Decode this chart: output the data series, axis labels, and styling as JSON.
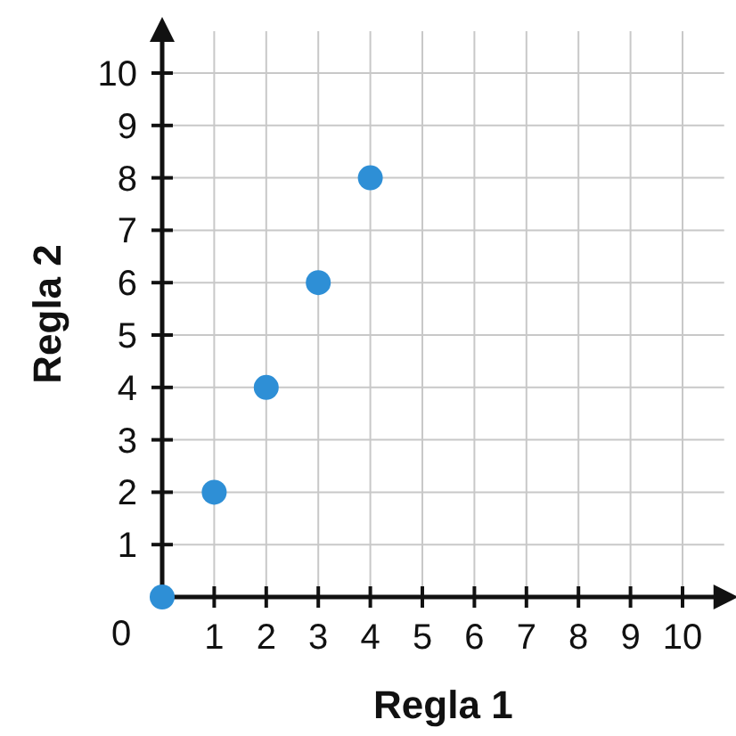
{
  "chart_data": {
    "type": "scatter",
    "xlabel": "Regla 1",
    "ylabel": "Regla 2",
    "x": [
      0,
      1,
      2,
      3,
      4
    ],
    "series": [
      {
        "color": "#2e8fd6",
        "values": [
          0,
          2,
          4,
          6,
          8
        ]
      }
    ],
    "xlim": [
      0,
      10.8
    ],
    "ylim": [
      0,
      10.8
    ],
    "xticks": [
      1,
      2,
      3,
      4,
      5,
      6,
      7,
      8,
      9,
      10
    ],
    "yticks": [
      1,
      2,
      3,
      4,
      5,
      6,
      7,
      8,
      9,
      10
    ],
    "grid": true,
    "marker": "circle",
    "annotations": [
      {
        "text": "0",
        "x": 0,
        "y": 0
      }
    ]
  }
}
